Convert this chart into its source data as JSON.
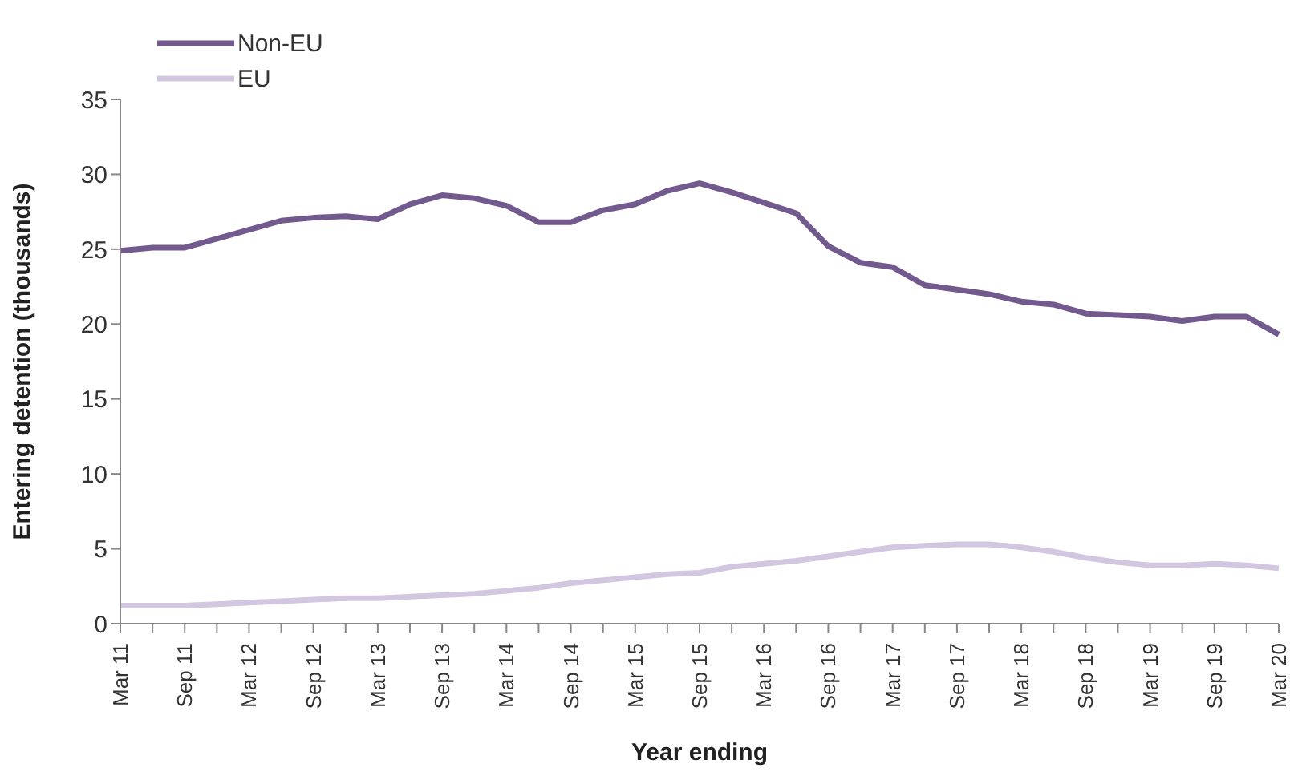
{
  "chart_data": {
    "type": "line",
    "xlabel": "Year ending",
    "ylabel": "Entering detention (thousands)",
    "categories": [
      "Mar 11",
      null,
      "Sep 11",
      null,
      "Mar 12",
      null,
      "Sep 12",
      null,
      "Mar 13",
      null,
      "Sep 13",
      null,
      "Mar 14",
      null,
      "Sep 14",
      null,
      "Mar 15",
      null,
      "Sep 15",
      null,
      "Mar 16",
      null,
      "Sep 16",
      null,
      "Mar 17",
      null,
      "Sep 17",
      null,
      "Mar 18",
      null,
      "Sep 18",
      null,
      "Mar 19",
      null,
      "Sep 19",
      null,
      "Mar 20"
    ],
    "series": [
      {
        "name": "Non-EU",
        "color": "#72598e",
        "values": [
          24.9,
          25.1,
          25.1,
          25.7,
          26.3,
          26.9,
          27.1,
          27.2,
          27.0,
          28.0,
          28.6,
          28.4,
          27.9,
          26.8,
          26.8,
          27.6,
          28.0,
          28.9,
          29.4,
          28.8,
          28.1,
          27.4,
          25.2,
          24.1,
          23.8,
          22.6,
          22.3,
          22.0,
          21.5,
          21.3,
          20.7,
          20.6,
          20.5,
          20.2,
          20.5,
          20.5,
          19.3
        ]
      },
      {
        "name": "EU",
        "color": "#d3c6e1",
        "values": [
          1.2,
          1.2,
          1.2,
          1.3,
          1.4,
          1.5,
          1.6,
          1.7,
          1.7,
          1.8,
          1.9,
          2.0,
          2.2,
          2.4,
          2.7,
          2.9,
          3.1,
          3.3,
          3.4,
          3.8,
          4.0,
          4.2,
          4.5,
          4.8,
          5.1,
          5.2,
          5.3,
          5.3,
          5.1,
          4.8,
          4.4,
          4.1,
          3.9,
          3.9,
          4.0,
          3.9,
          3.7
        ]
      }
    ],
    "ylim": [
      0,
      35
    ],
    "yticks": [
      0,
      5,
      10,
      15,
      20,
      25,
      30,
      35
    ],
    "grid": false,
    "legend": "top left"
  }
}
